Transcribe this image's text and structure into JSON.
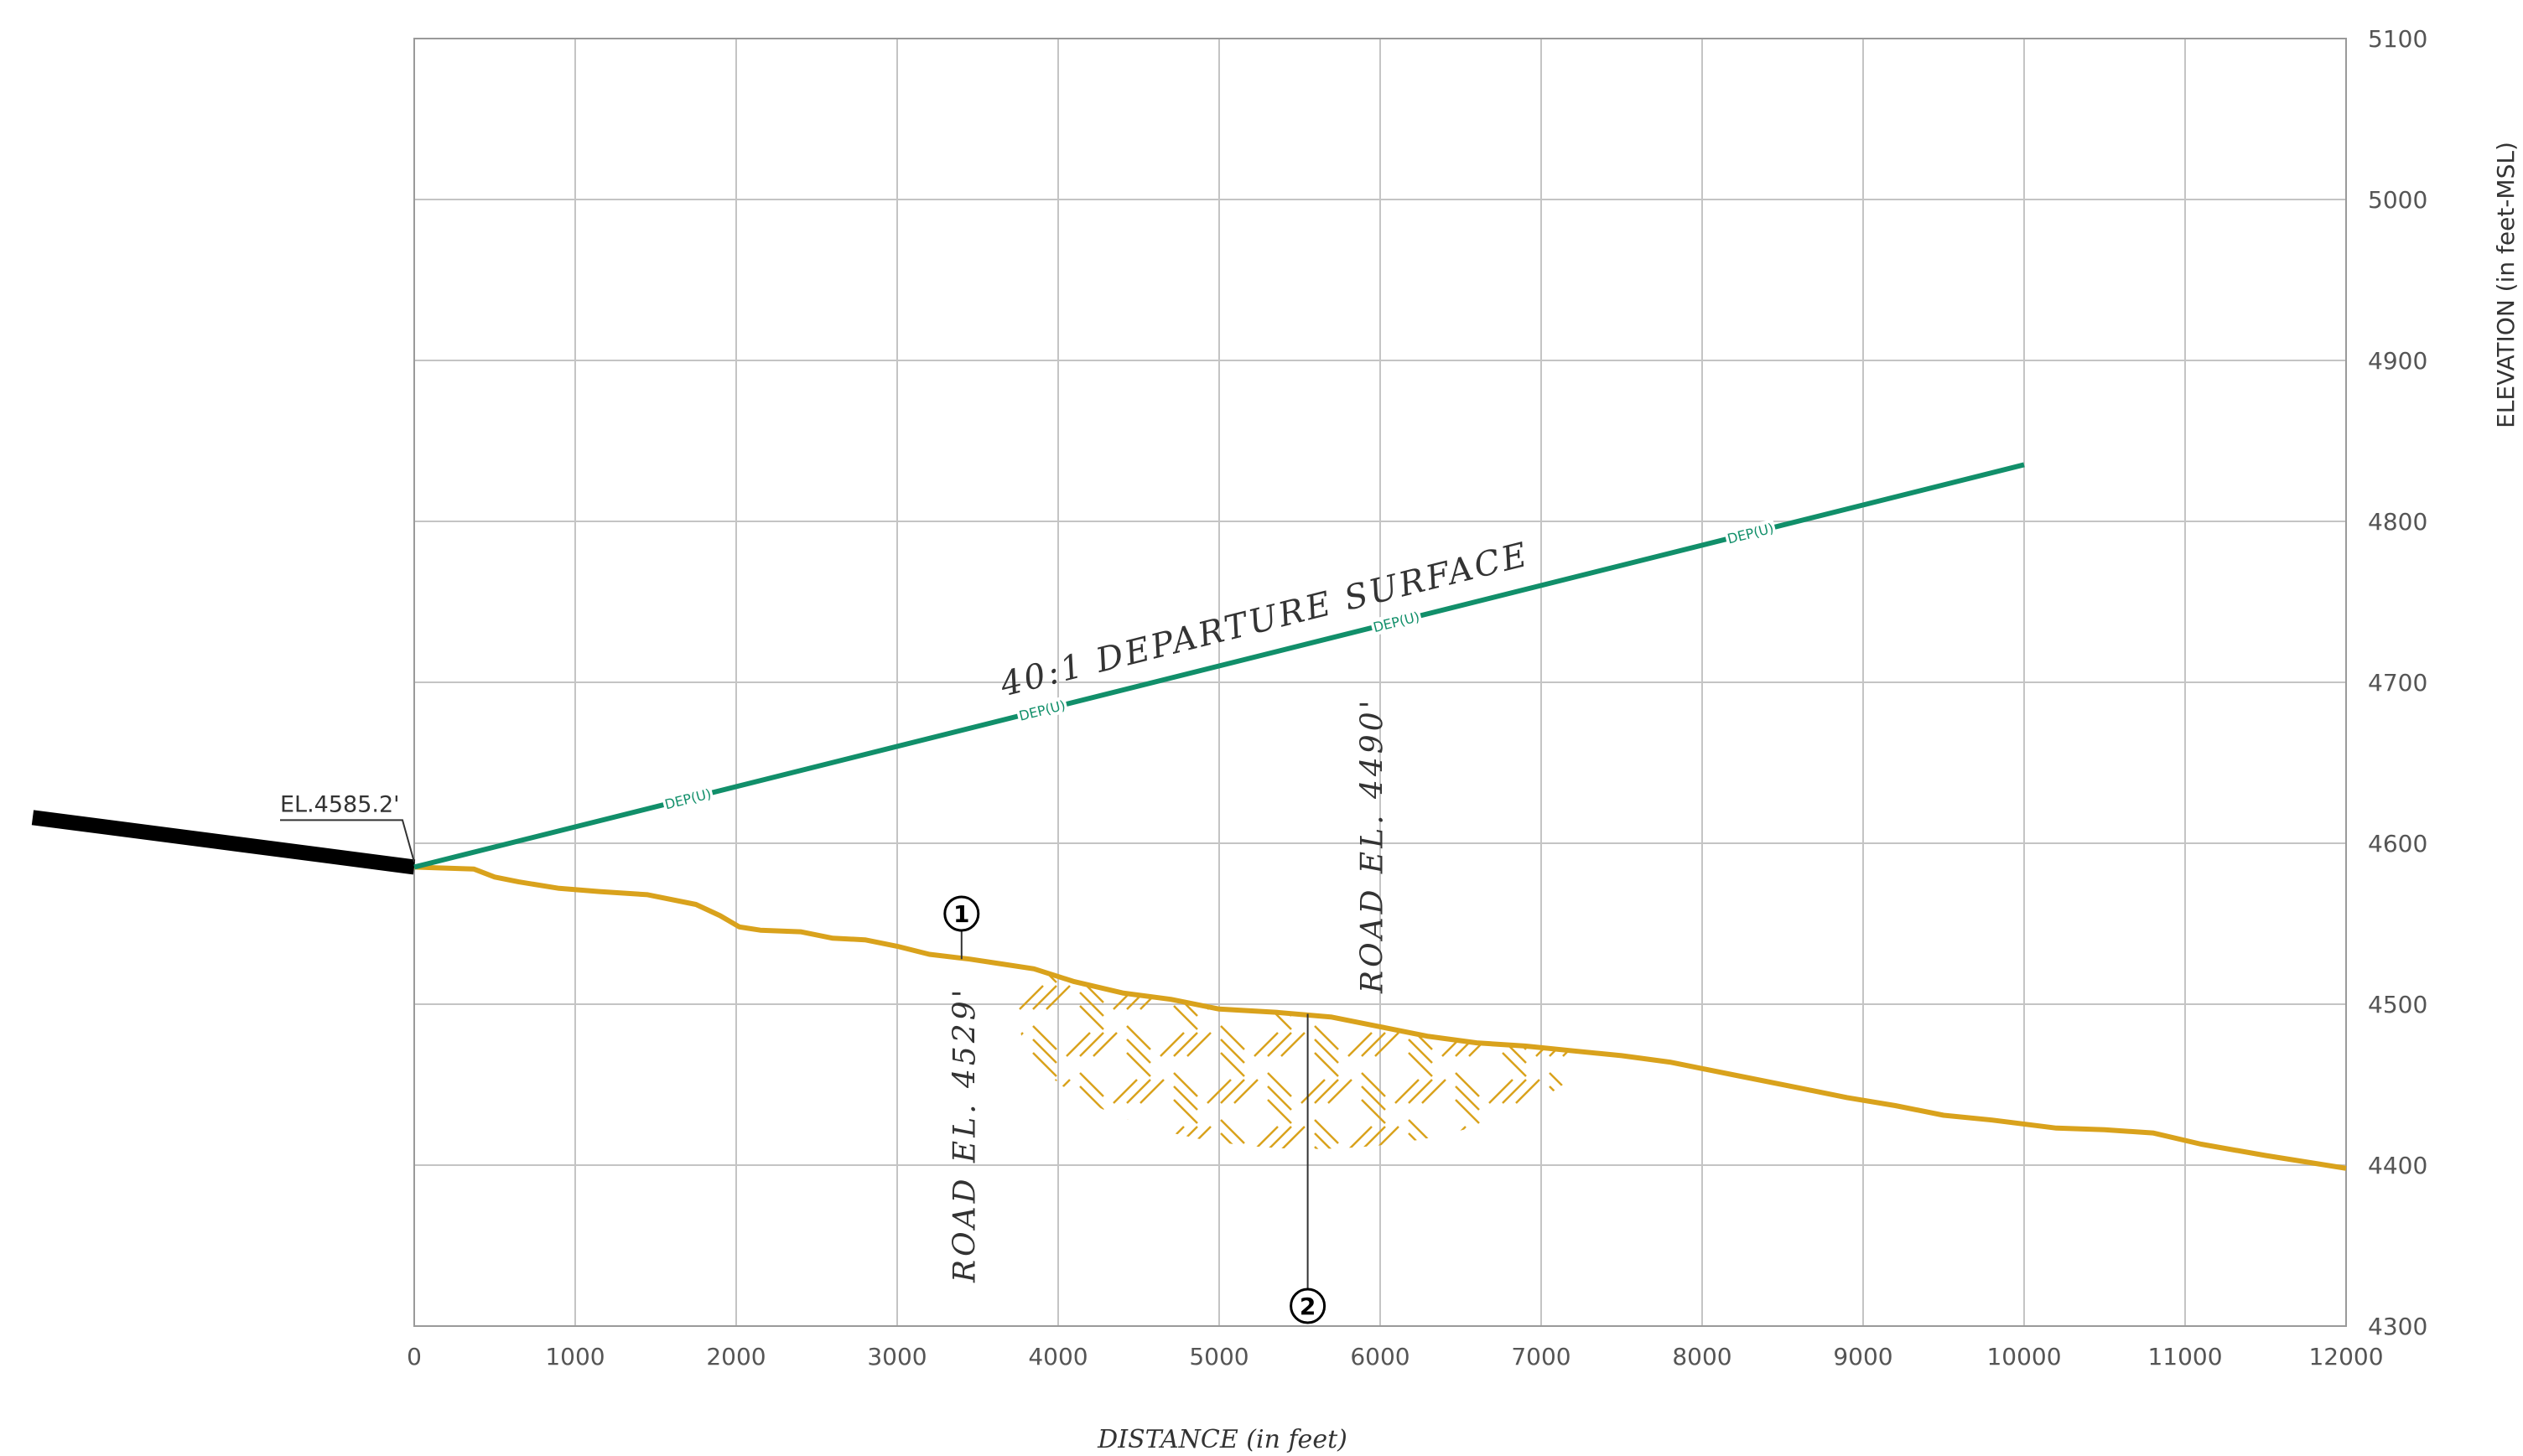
{
  "chart_data": {
    "type": "line",
    "xlabel": "DISTANCE (in feet)",
    "ylabel": "ELEVATION (in feet-MSL)",
    "xlim": [
      0,
      12000
    ],
    "ylim": [
      4300,
      5100
    ],
    "x_ticks": [
      "0",
      "1000",
      "2000",
      "3000",
      "4000",
      "5000",
      "6000",
      "7000",
      "8000",
      "9000",
      "10000",
      "11000",
      "12000"
    ],
    "y_ticks": [
      "5100",
      "5000",
      "4900",
      "4800",
      "4700",
      "4600",
      "4500",
      "4400",
      "4300"
    ],
    "grid": true,
    "colors": {
      "surface": "#118f6a",
      "terrain": "#d9a21c",
      "runway": "#000000",
      "grid": "#c4c4c4",
      "text": "#333333"
    },
    "series": [
      {
        "name": "40:1 DEPARTURE SURFACE",
        "x": [
          0,
          10000
        ],
        "y": [
          4585.2,
          4835.2
        ],
        "labels": [
          {
            "x": 1700,
            "text": "DEP(U)"
          },
          {
            "x": 3900,
            "text": "DEP(U)"
          },
          {
            "x": 6100,
            "text": "DEP(U)"
          },
          {
            "x": 8300,
            "text": "DEP(U)"
          }
        ]
      },
      {
        "name": "",
        "x": [
          0,
          370,
          500,
          650,
          900,
          1150,
          1450,
          1750,
          1900,
          2020,
          2150,
          2400,
          2600,
          2800,
          3000,
          3200,
          3450,
          3650,
          3850,
          4100,
          4400,
          4700,
          5000,
          5350,
          5700,
          6000,
          6300,
          6600,
          6900,
          7200,
          7500,
          7800,
          8200,
          8600,
          8900,
          9200,
          9500,
          9800,
          10200,
          10500,
          10800,
          11100,
          11500,
          12000
        ],
        "y": [
          4585.2,
          4584,
          4579,
          4576,
          4572,
          4570,
          4568,
          4562,
          4555,
          4548,
          4546,
          4545,
          4541,
          4540,
          4536,
          4531,
          4528,
          4525,
          4522,
          4514,
          4507,
          4503,
          4497,
          4495,
          4492,
          4486,
          4480,
          4476,
          4474,
          4471,
          4468,
          4464,
          4456,
          4448,
          4442,
          4437,
          4431,
          4428,
          4423,
          4422,
          4420,
          4413,
          4406,
          4398
        ]
      }
    ],
    "runway": {
      "x_start": -2370,
      "y_start": 4616,
      "x_end": 0,
      "y_end": 4585.2
    },
    "hatch_region": {
      "x_from": 3750,
      "x_to": 7400,
      "y_bottom": 4410
    },
    "annotations": [
      {
        "id": "el_label",
        "text": "EL.4585.2'",
        "x": 0,
        "y": 4585.2
      },
      {
        "id": "surface_label",
        "text": "40:1 DEPARTURE SURFACE"
      },
      {
        "id": "callout_1",
        "number": "1",
        "x": 3400,
        "y": 4528,
        "text": "ROAD EL. 4529'"
      },
      {
        "id": "callout_2",
        "number": "2",
        "x": 5550,
        "y": 4494,
        "text": "ROAD EL. 4490'"
      }
    ]
  }
}
